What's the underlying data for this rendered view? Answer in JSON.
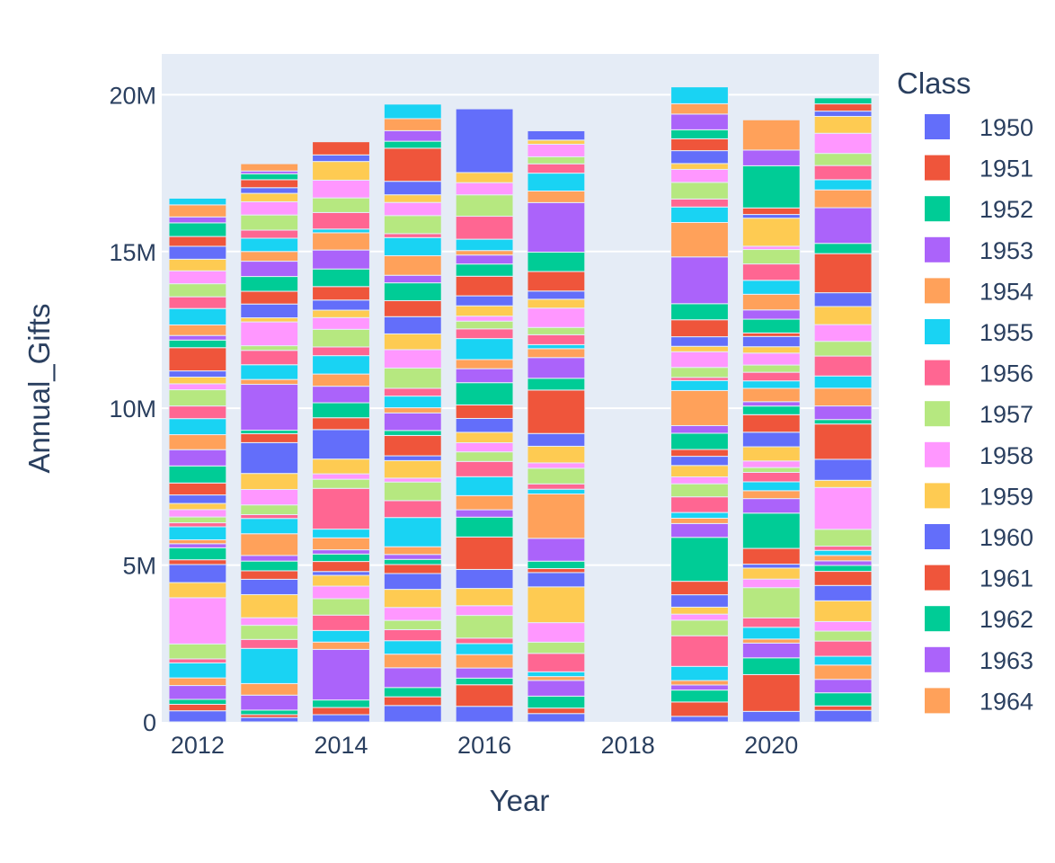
{
  "chart_data": {
    "type": "bar",
    "barmode": "stack",
    "title": "",
    "xlabel": "Year",
    "ylabel": "Annual_Gifts",
    "xlim": [
      2011.5,
      2021.5
    ],
    "ylim": [
      0,
      21300000
    ],
    "x_ticks": [
      2012,
      2014,
      2016,
      2018,
      2020
    ],
    "y_ticks": [
      {
        "value": 0,
        "label": "0"
      },
      {
        "value": 5000000,
        "label": "5M"
      },
      {
        "value": 10000000,
        "label": "10M"
      },
      {
        "value": 15000000,
        "label": "15M"
      },
      {
        "value": 20000000,
        "label": "20M"
      }
    ],
    "grid": true,
    "legend_title": "Class",
    "legend_placement": "right",
    "categories": [
      2012,
      2013,
      2014,
      2015,
      2016,
      2017,
      2019,
      2020,
      2021
    ],
    "totals": [
      16700000,
      17800000,
      18500000,
      19700000,
      19550000,
      18850000,
      20250000,
      19200000,
      19900000
    ],
    "palette": [
      "#636efa",
      "#EF553B",
      "#00cc96",
      "#ab63fa",
      "#FFA15A",
      "#19d3f3",
      "#FF6692",
      "#B6E880",
      "#FF97FF",
      "#FECB52"
    ],
    "series": [
      {
        "name": "1950",
        "color": "#636efa"
      },
      {
        "name": "1951",
        "color": "#EF553B"
      },
      {
        "name": "1952",
        "color": "#00cc96"
      },
      {
        "name": "1953",
        "color": "#ab63fa"
      },
      {
        "name": "1954",
        "color": "#FFA15A"
      },
      {
        "name": "1955",
        "color": "#19d3f3"
      },
      {
        "name": "1956",
        "color": "#FF6692"
      },
      {
        "name": "1957",
        "color": "#B6E880"
      },
      {
        "name": "1958",
        "color": "#FF97FF"
      },
      {
        "name": "1959",
        "color": "#FECB52"
      },
      {
        "name": "1960",
        "color": "#636efa"
      },
      {
        "name": "1961",
        "color": "#EF553B"
      },
      {
        "name": "1962",
        "color": "#00cc96"
      },
      {
        "name": "1963",
        "color": "#ab63fa"
      },
      {
        "name": "1964",
        "color": "#FFA15A"
      }
    ]
  }
}
